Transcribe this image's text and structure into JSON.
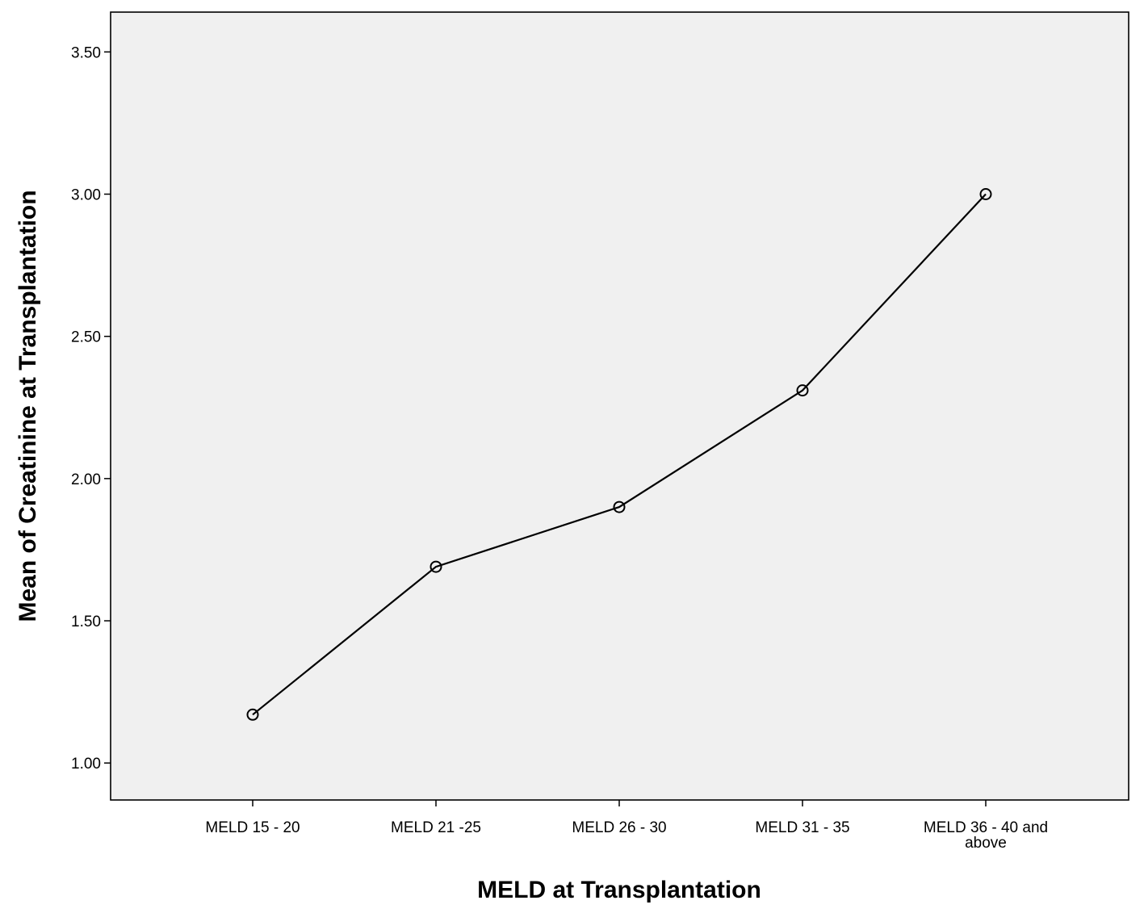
{
  "chart_data": {
    "type": "line",
    "title": "",
    "xlabel": "MELD at Transplantation",
    "ylabel": "Mean of Creatinine at Transplantation",
    "categories": [
      "MELD 15 - 20",
      "MELD 21 -25",
      "MELD 26 - 30",
      "MELD 31 - 35",
      "MELD 36 - 40 and above"
    ],
    "series": [
      {
        "values": [
          1.17,
          1.69,
          1.9,
          2.31,
          3.0
        ]
      }
    ],
    "yticks": [
      "1.00",
      "1.50",
      "2.00",
      "2.50",
      "3.00",
      "3.50"
    ],
    "ylim": [
      0.87,
      3.64
    ],
    "grid": false,
    "marker": "open-circle",
    "colors": {
      "plot_bg": "#f0f0f0",
      "line": "#000000"
    }
  }
}
